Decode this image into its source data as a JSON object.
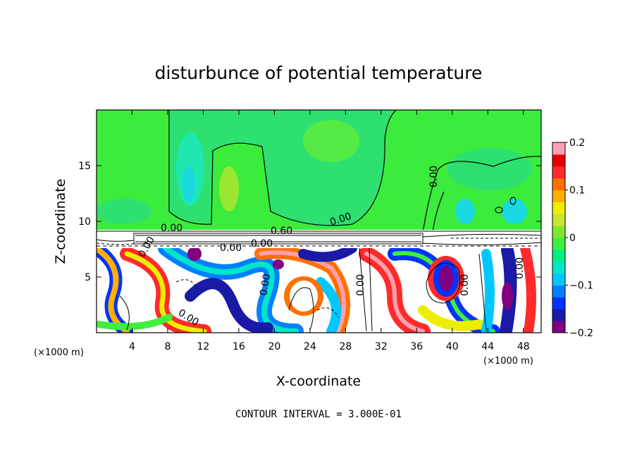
{
  "chart_data": {
    "type": "heatmap",
    "title": "disturbunce of potential temperature",
    "xlabel": "X-coordinate",
    "ylabel": "Z-coordinate",
    "x_unit": "(×1000 m)",
    "z_unit": "(×1000 m)",
    "xlim": [
      0,
      50
    ],
    "ylim": [
      0,
      20
    ],
    "x_ticks": [
      4,
      8,
      12,
      16,
      20,
      24,
      28,
      32,
      36,
      40,
      44,
      48
    ],
    "y_ticks": [
      5,
      10,
      15
    ],
    "colorbar": {
      "range": [
        -0.2,
        0.2
      ],
      "tick_values": [
        0.2,
        0.1,
        0,
        -0.1,
        -0.2
      ],
      "tick_labels": [
        "0.2",
        "0.1",
        "0",
        "−0.1",
        "−0.2"
      ],
      "colors": [
        "#800080",
        "#1a1aa6",
        "#0033ff",
        "#0080ff",
        "#00c8ff",
        "#00e6c8",
        "#00f080",
        "#40ee40",
        "#80e633",
        "#c8e633",
        "#eeee00",
        "#ffb000",
        "#ff7000",
        "#ff2a2a",
        "#e60000",
        "#ffa0b0"
      ]
    },
    "contour_labels": [
      "0.00",
      "0.00",
      "0.00",
      "0.60",
      "0.00",
      "0.00",
      "0.00",
      "0.00",
      "0.00",
      "0.00",
      "0.00",
      "0.00"
    ],
    "contour_interval_text": "CONTOUR INTERVAL =  3.000E-01"
  }
}
